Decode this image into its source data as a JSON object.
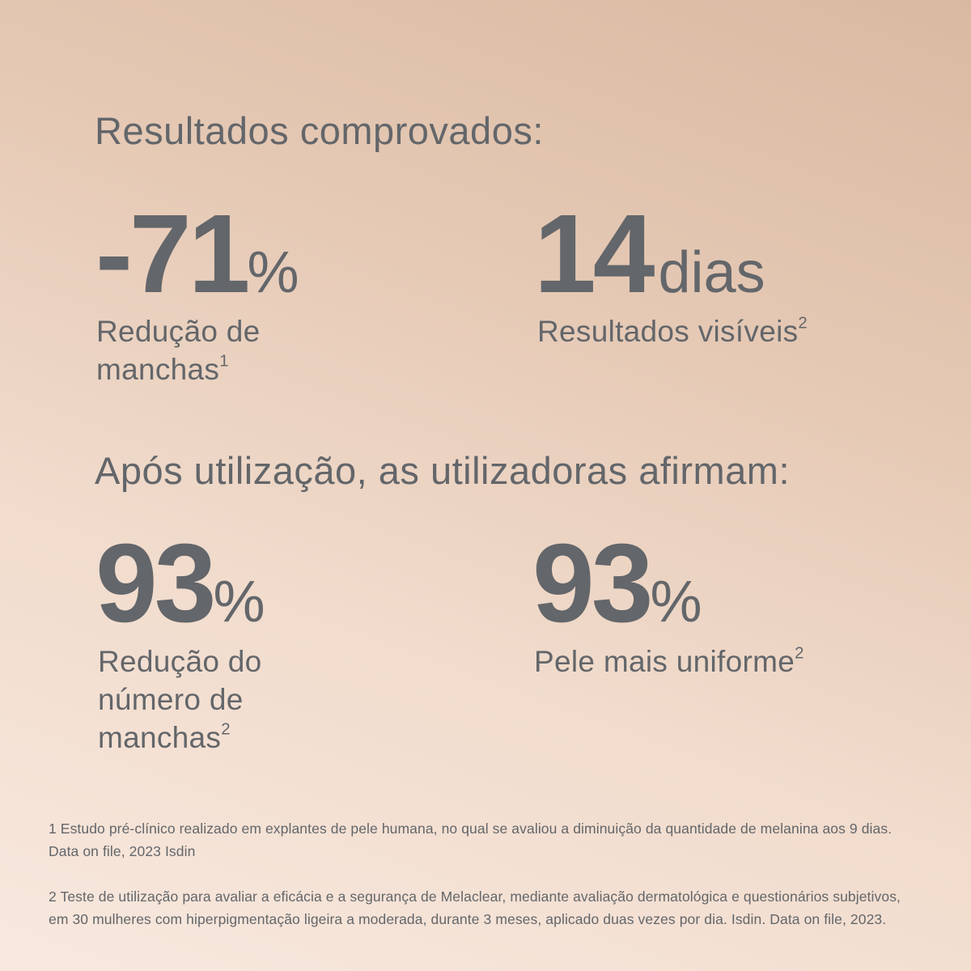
{
  "section1": {
    "heading": "Resultados comprovados:",
    "stats": [
      {
        "value": "-71",
        "unit": "%",
        "label": "Redução de manchas",
        "sup": "1"
      },
      {
        "value": "14",
        "unit": "dias",
        "label": "Resultados visíveis",
        "sup": "2"
      }
    ]
  },
  "section2": {
    "heading": "Após utilização, as utilizadoras afirmam:",
    "stats": [
      {
        "value": "93",
        "unit": "%",
        "label": "Redução do número de manchas",
        "sup": "2"
      },
      {
        "value": "93",
        "unit": "%",
        "label": "Pele mais uniforme",
        "sup": "2"
      }
    ]
  },
  "footnotes": [
    "1  Estudo pré-clínico realizado em explantes de pele humana, no qual se avaliou a diminuição da quantidade de melanina aos 9 dias. Data on file, 2023 Isdin",
    "2 Teste de utilização para avaliar a eficácia e a segurança de Melaclear, mediante avaliação dermatológica e questionários subjetivos, em 30 mulheres com hiperpigmentação ligeira a moderada, durante 3 meses, aplicado duas vezes por dia. Isdin. Data on file, 2023."
  ],
  "colors": {
    "text": "#63666a",
    "background_top": "#d9b9a1",
    "background_bottom": "#f8e8de"
  }
}
